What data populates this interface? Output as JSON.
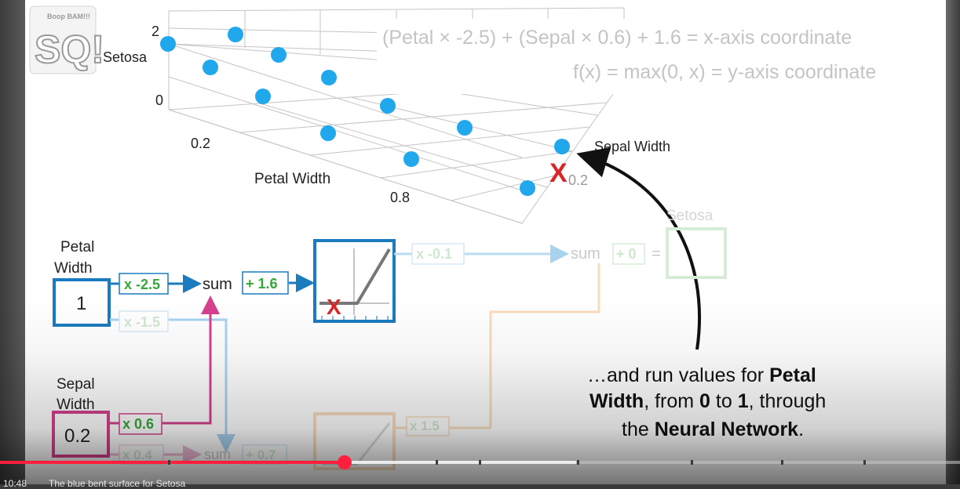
{
  "logo": {
    "text_big": "SQ!",
    "text_small": "Boop BAM!!!",
    "icon": "statquest-logo-icon"
  },
  "plot": {
    "y_label": "Setosa",
    "y_ticks": [
      "2",
      "0"
    ],
    "x_label": "Petal Width",
    "x_ticks": [
      "0.2",
      "0.8"
    ],
    "z_label": "Sepal Width",
    "z_tick": "0.2",
    "marker": "X"
  },
  "formula": {
    "line1": "(Petal × -2.5) + (Sepal × 0.6) + 1.6 = x-axis coordinate",
    "line2": "f(x) = max(0, x) = y-axis coordinate"
  },
  "network": {
    "input1_label_line1": "Petal",
    "input1_label_line2": "Width",
    "input1_value": "1",
    "input2_label_line1": "Sepal",
    "input2_label_line2": "Width",
    "input2_value": "0.2",
    "w1": "x -2.5",
    "w2": "x -1.5",
    "w3": "x 0.6",
    "w4": "x 0.4",
    "sum1": "sum",
    "bias1": "+ 1.6",
    "sum2": "sum",
    "bias2": "+ 0.7",
    "w_out1": "x -0.1",
    "w_out2": "x 1.5",
    "sum_out": "sum",
    "bias_out": "+ 0",
    "equals": "=",
    "output_label": "Setosa",
    "activation_marker": "X"
  },
  "caption": {
    "p1": "…and run values for ",
    "b1": "Petal",
    "p2": "Width",
    "p3": ", from ",
    "b2": "0",
    "p4": " to ",
    "b3": "1",
    "p5": ", through",
    "p6": "the ",
    "b4": "Neural Network",
    "p7": "."
  },
  "player": {
    "time": "10:48",
    "chapter": "The blue bent surface for Setosa",
    "progress": 0.359,
    "buffered": 0.6
  },
  "colors": {
    "blue": "#1a7bbf",
    "dot_blue": "#21a8ec",
    "pink": "#d6418d",
    "green": "#36a83a",
    "red": "#d62828",
    "faded": "#c9c9c9",
    "progress_red": "#ff1f3d"
  }
}
